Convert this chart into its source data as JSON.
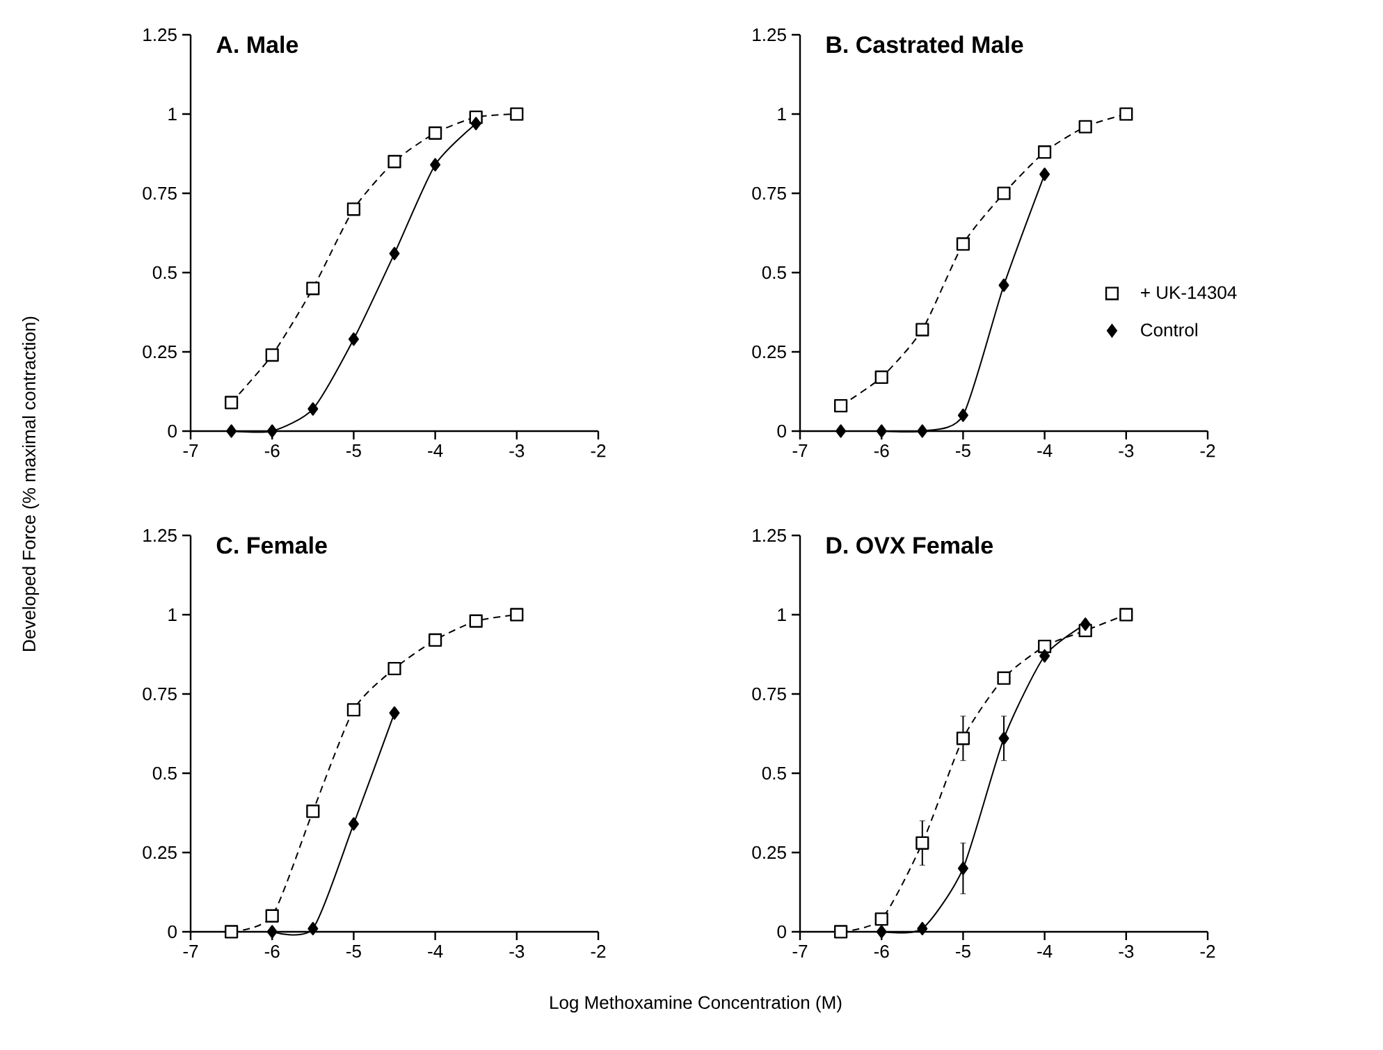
{
  "chart_data": [
    {
      "type": "line",
      "title": "A. Male",
      "ylabel": "Developed Force (% maximal contraction)",
      "xlim": [
        -7,
        -2
      ],
      "ylim": [
        0,
        1.25
      ],
      "xticks": [
        -7,
        -6,
        -5,
        -4,
        -3,
        -2
      ],
      "yticks": [
        0,
        0.25,
        0.5,
        0.75,
        1,
        1.25
      ],
      "series": [
        {
          "color": "#000000",
          "marker": "square",
          "line_style": "dashed",
          "x": [
            -6.5,
            -6,
            -5.5,
            -5,
            -4.5,
            -4,
            -3.5,
            -3
          ],
          "values": [
            0.09,
            0.24,
            0.45,
            0.7,
            0.85,
            0.94,
            0.99,
            1.0
          ]
        },
        {
          "color": "#000000",
          "marker": "diamond",
          "line_style": "solid",
          "x": [
            -6.5,
            -6,
            -5.5,
            -5,
            -4.5,
            -4,
            -3.5
          ],
          "values": [
            0,
            0,
            0.07,
            0.29,
            0.56,
            0.84,
            0.97
          ]
        }
      ]
    },
    {
      "type": "line",
      "title": "B. Castrated Male",
      "legend": "right",
      "xlim": [
        -7,
        -2
      ],
      "ylim": [
        0,
        1.25
      ],
      "xticks": [
        -7,
        -6,
        -5,
        -4,
        -3,
        -2
      ],
      "yticks": [
        0,
        0.25,
        0.5,
        0.75,
        1,
        1.25
      ],
      "series": [
        {
          "name": "+ UK-14304",
          "color": "#000000",
          "marker": "square",
          "line_style": "dashed",
          "x": [
            -6.5,
            -6,
            -5.5,
            -5,
            -4.5,
            -4,
            -3.5,
            -3
          ],
          "values": [
            0.08,
            0.17,
            0.32,
            0.59,
            0.75,
            0.88,
            0.96,
            1.0
          ]
        },
        {
          "name": "Control",
          "color": "#000000",
          "marker": "diamond",
          "line_style": "solid",
          "x": [
            -6.5,
            -6,
            -5.5,
            -5,
            -4.5,
            -4
          ],
          "values": [
            0,
            0,
            0,
            0.05,
            0.46,
            0.81
          ]
        }
      ]
    },
    {
      "type": "line",
      "title": "C. Female",
      "xlabel": "Log Methoxamine Concentration (M)",
      "xlim": [
        -7,
        -2
      ],
      "ylim": [
        0,
        1.25
      ],
      "xticks": [
        -7,
        -6,
        -5,
        -4,
        -3,
        -2
      ],
      "yticks": [
        0,
        0.25,
        0.5,
        0.75,
        1,
        1.25
      ],
      "series": [
        {
          "color": "#000000",
          "marker": "square",
          "line_style": "dashed",
          "x": [
            -6.5,
            -6,
            -5.5,
            -5,
            -4.5,
            -4,
            -3.5,
            -3
          ],
          "values": [
            0,
            0.05,
            0.38,
            0.7,
            0.83,
            0.92,
            0.98,
            1.0
          ]
        },
        {
          "color": "#000000",
          "marker": "diamond",
          "line_style": "solid",
          "x": [
            -6,
            -5.5,
            -5,
            -4.5
          ],
          "values": [
            0,
            0.01,
            0.34,
            0.69
          ]
        }
      ]
    },
    {
      "type": "line",
      "title": "D. OVX Female",
      "xlim": [
        -7,
        -2
      ],
      "ylim": [
        0,
        1.25
      ],
      "xticks": [
        -7,
        -6,
        -5,
        -4,
        -3,
        -2
      ],
      "yticks": [
        0,
        0.25,
        0.5,
        0.75,
        1,
        1.25
      ],
      "series": [
        {
          "color": "#000000",
          "marker": "square",
          "line_style": "dashed",
          "x": [
            -6.5,
            -6,
            -5.5,
            -5,
            -4.5,
            -4,
            -3.5,
            -3
          ],
          "values": [
            0,
            0.04,
            0.28,
            0.61,
            0.8,
            0.9,
            0.95,
            1.0
          ],
          "errors": [
            null,
            null,
            0.07,
            0.07,
            null,
            null,
            null,
            null
          ]
        },
        {
          "color": "#000000",
          "marker": "diamond",
          "line_style": "solid",
          "x": [
            -6,
            -5.5,
            -5,
            -4.5,
            -4,
            -3.5
          ],
          "values": [
            0,
            0.01,
            0.2,
            0.61,
            0.87,
            0.97
          ],
          "errors": [
            null,
            null,
            0.08,
            0.07,
            null,
            null
          ]
        }
      ]
    }
  ]
}
